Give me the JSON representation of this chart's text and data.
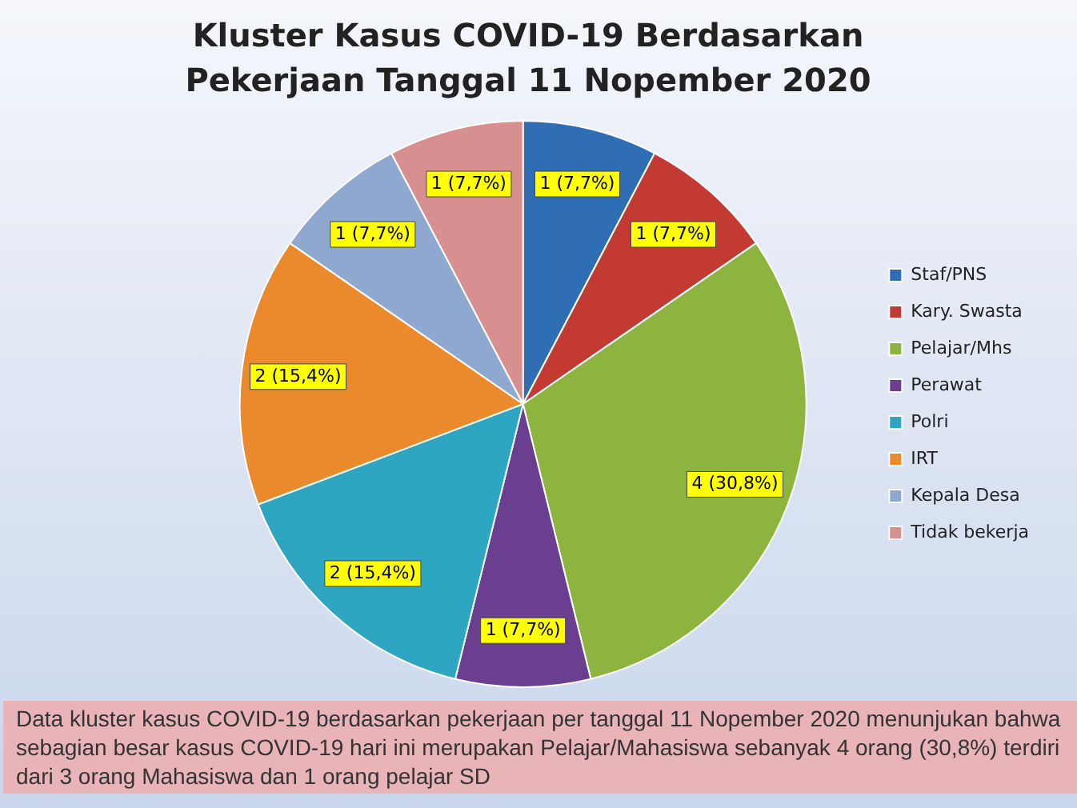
{
  "chart_data": {
    "type": "pie",
    "title": "Kluster Kasus COVID-19 Berdasarkan Pekerjaan Tanggal 11 Nopember 2020",
    "categories": [
      "Staf/PNS",
      "Kary. Swasta",
      "Pelajar/Mhs",
      "Perawat",
      "Polri",
      "IRT",
      "Kepala Desa",
      "Tidak bekerja"
    ],
    "values": [
      1,
      1,
      4,
      1,
      2,
      2,
      1,
      1
    ],
    "value_labels": [
      "1 (7,7%)",
      "1 (7,7%)",
      "4 (30,8%)",
      "1 (7,7%)",
      "2 (15,4%)",
      "2 (15,4%)",
      "1 (7,7%)",
      "1 (7,7%)"
    ],
    "colors": [
      "#2f6db5",
      "#c23a32",
      "#8cb43e",
      "#6b3f8f",
      "#2ea6c2",
      "#ea8a2c",
      "#8fa8cf",
      "#d88f8f"
    ],
    "legend": "right",
    "annotations": [
      "Data kluster kasus COVID-19  berdasarkan pekerjaan per tanggal 11 Nopember 2020 menunjukan bahwa sebagian besar kasus COVID-19 hari ini merupakan Pelajar/Mahasiswa sebanyak 4 orang (30,8%) terdiri dari 3 orang Mahasiswa dan 1 orang pelajar SD"
    ]
  }
}
